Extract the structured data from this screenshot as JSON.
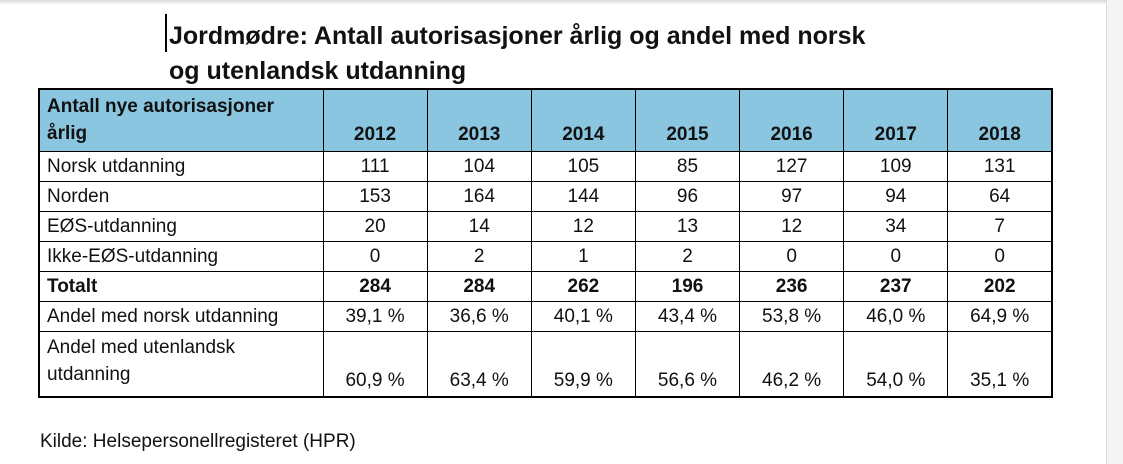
{
  "page": {
    "title_line1": "Jordmødre: Antall autorisasjoner årlig og andel med norsk",
    "title_line2": "og utenlandsk utdanning",
    "source": "Kilde: Helsepersonellregisteret (HPR)"
  },
  "colors": {
    "header_bg": "#8ac6e0",
    "table_border": "#000000",
    "page_bg": "#ffffff",
    "chrome_bg": "#f4f4f4"
  },
  "table": {
    "header_label": "Antall nye autorisasjoner årlig",
    "years": [
      "2012",
      "2013",
      "2014",
      "2015",
      "2016",
      "2017",
      "2018"
    ],
    "rows": [
      {
        "label": "Norsk utdanning",
        "bold": false,
        "tall": false,
        "values": [
          "111",
          "104",
          "105",
          "85",
          "127",
          "109",
          "131"
        ]
      },
      {
        "label": "Norden",
        "bold": false,
        "tall": false,
        "values": [
          "153",
          "164",
          "144",
          "96",
          "97",
          "94",
          "64"
        ]
      },
      {
        "label": "EØS-utdanning",
        "bold": false,
        "tall": false,
        "values": [
          "20",
          "14",
          "12",
          "13",
          "12",
          "34",
          "7"
        ]
      },
      {
        "label": "Ikke-EØS-utdanning",
        "bold": false,
        "tall": false,
        "values": [
          "0",
          "2",
          "1",
          "2",
          "0",
          "0",
          "0"
        ]
      },
      {
        "label": "Totalt",
        "bold": true,
        "tall": false,
        "values": [
          "284",
          "284",
          "262",
          "196",
          "236",
          "237",
          "202"
        ]
      },
      {
        "label": "Andel med norsk utdanning",
        "bold": false,
        "tall": false,
        "values": [
          "39,1 %",
          "36,6 %",
          "40,1 %",
          "43,4 %",
          "53,8 %",
          "46,0 %",
          "64,9 %"
        ]
      },
      {
        "label": "Andel med utenlandsk utdanning",
        "bold": false,
        "tall": true,
        "values": [
          "60,9 %",
          "63,4 %",
          "59,9 %",
          "56,6 %",
          "46,2 %",
          "54,0 %",
          "35,1 %"
        ]
      }
    ]
  }
}
